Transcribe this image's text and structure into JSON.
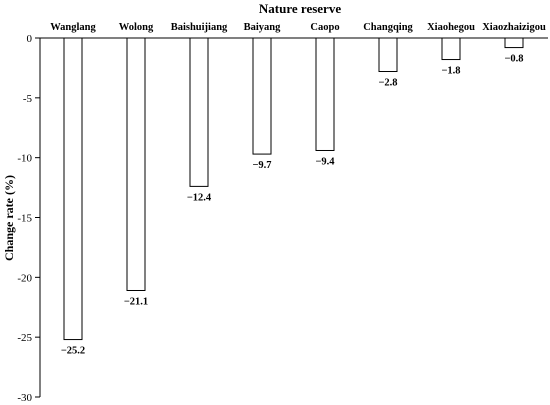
{
  "chart_data": {
    "type": "bar",
    "title": "Nature reserve",
    "ylabel": "Change rate (%)",
    "xlabel": "",
    "ylim": [
      -30,
      0
    ],
    "yticks": [
      0,
      -5,
      -10,
      -15,
      -20,
      -25,
      -30
    ],
    "ytick_labels": [
      "0",
      "-5",
      "-10",
      "-15",
      "-20",
      "-25",
      "-30"
    ],
    "categories": [
      "Wanglang",
      "Wolong",
      "Baishuijiang",
      "Baiyang",
      "Caopo",
      "Changqing",
      "Xiaohegou",
      "Xiaozhaizigou"
    ],
    "values": [
      -25.2,
      -21.1,
      -12.4,
      -9.7,
      -9.4,
      -2.8,
      -1.8,
      -0.8
    ],
    "value_labels": [
      "−25.2",
      "−21.1",
      "−12.4",
      "−9.7",
      "−9.4",
      "−2.8",
      "−1.8",
      "−0.8"
    ],
    "category_axis_position": "top",
    "grid": false,
    "legend": "none",
    "colors": {
      "bar_fill": "#ffffff",
      "bar_stroke": "#000000",
      "axis": "#000000"
    }
  }
}
